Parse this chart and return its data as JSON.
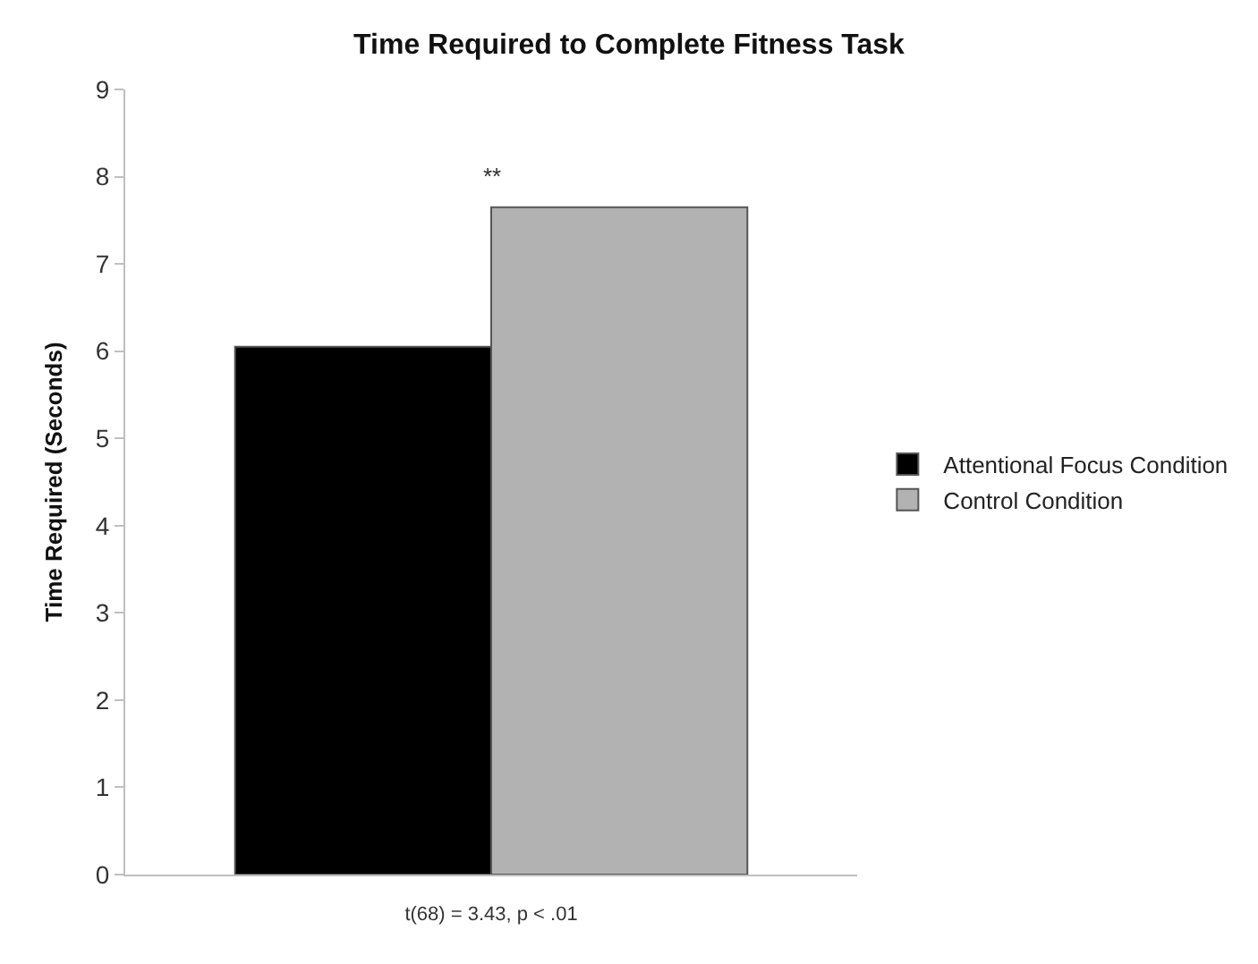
{
  "chart_data": {
    "type": "bar",
    "title": "Time Required to Complete Fitness Task",
    "ylabel": "Time Required (Seconds)",
    "xlabel": "t(68) = 3.43, p < .01",
    "categories": [
      null
    ],
    "series": [
      {
        "name": "Attentional Focus Condition",
        "color": "#000000",
        "values": [
          6.05
        ]
      },
      {
        "name": "Control Condition",
        "color": "#b2b2b2",
        "values": [
          7.65
        ]
      }
    ],
    "ylim": [
      0,
      9
    ],
    "yticks": [
      0,
      1,
      2,
      3,
      4,
      5,
      6,
      7,
      8,
      9
    ],
    "legend": "right",
    "annotations": [
      "**"
    ]
  }
}
